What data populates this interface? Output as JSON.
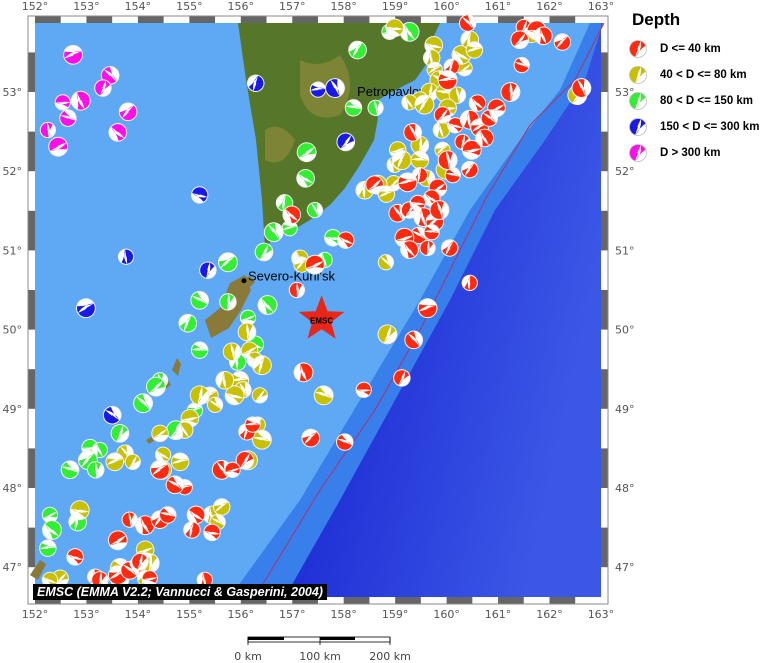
{
  "map": {
    "extent": {
      "lon_min": 152,
      "lon_max": 163,
      "lat_min": 46.62,
      "lat_max": 53.87
    },
    "lon_ticks": [
      152,
      153,
      154,
      155,
      156,
      157,
      158,
      159,
      160,
      161,
      162,
      163
    ],
    "lat_ticks": [
      47,
      48,
      49,
      50,
      51,
      52,
      53
    ],
    "degree_symbol": "°",
    "places": [
      {
        "name": "Petropavlovsk",
        "lon": 158.65,
        "lat": 53.01
      },
      {
        "name": "Severo-Kuril'sk",
        "lon": 156.12,
        "lat": 50.68
      }
    ],
    "epicenter": {
      "label": "EMSC",
      "lon": 157.57,
      "lat": 50.13,
      "color": "#e8261a"
    },
    "colors": {
      "sea_shallow": "#5fa8f4",
      "sea_mid": "#2f74ea",
      "sea_deep": "#1f2fd6",
      "trench_floor": "#3c57e6",
      "land": "#56772a",
      "trench_line": "#b0306a"
    }
  },
  "depth_classes": [
    {
      "key": "red",
      "label": "D <= 40 km",
      "color": "#ff2a10"
    },
    {
      "key": "yellow",
      "label": "40 < D <= 80 km",
      "color": "#c8c000"
    },
    {
      "key": "green",
      "label": "80 < D <= 150 km",
      "color": "#33ee33"
    },
    {
      "key": "blue",
      "label": "150 < D <= 300 km",
      "color": "#1a1ae6"
    },
    {
      "key": "magenta",
      "label": "D > 300 km",
      "color": "#ff10e8"
    }
  ],
  "legend": {
    "title": "Depth"
  },
  "events": {
    "red": [
      [
        160.41,
        53.87
      ],
      [
        161.5,
        53.82
      ],
      [
        161.75,
        53.78
      ],
      [
        161.88,
        53.71
      ],
      [
        162.25,
        53.63
      ],
      [
        161.46,
        53.34
      ],
      [
        161.24,
        53.0
      ],
      [
        160.97,
        52.8
      ],
      [
        160.6,
        52.86
      ],
      [
        160.1,
        53.32
      ],
      [
        160.02,
        53.15
      ],
      [
        159.34,
        52.49
      ],
      [
        159.92,
        52.71
      ],
      [
        160.17,
        52.58
      ],
      [
        160.45,
        52.65
      ],
      [
        160.64,
        52.55
      ],
      [
        160.83,
        52.67
      ],
      [
        160.31,
        52.37
      ],
      [
        160.49,
        52.27
      ],
      [
        160.74,
        52.42
      ],
      [
        160.45,
        52.02
      ],
      [
        160.12,
        51.95
      ],
      [
        160.02,
        52.14
      ],
      [
        159.83,
        51.79
      ],
      [
        159.71,
        51.66
      ],
      [
        159.48,
        51.95
      ],
      [
        159.24,
        51.86
      ],
      [
        159.05,
        51.47
      ],
      [
        159.28,
        51.51
      ],
      [
        159.44,
        51.6
      ],
      [
        159.55,
        51.42
      ],
      [
        159.77,
        51.36
      ],
      [
        159.46,
        51.19
      ],
      [
        159.63,
        51.03
      ],
      [
        159.18,
        51.16
      ],
      [
        159.28,
        51.01
      ],
      [
        160.06,
        51.03
      ],
      [
        159.71,
        51.23
      ],
      [
        159.86,
        51.51
      ],
      [
        158.6,
        51.83
      ],
      [
        158.04,
        51.13
      ],
      [
        160.45,
        50.59
      ],
      [
        159.63,
        50.27
      ],
      [
        159.36,
        49.87
      ],
      [
        159.13,
        49.39
      ],
      [
        158.39,
        49.24
      ],
      [
        157.22,
        49.46
      ],
      [
        157.36,
        48.63
      ],
      [
        158.02,
        48.58
      ],
      [
        157.09,
        50.5
      ],
      [
        157.44,
        50.82
      ],
      [
        156.99,
        51.45
      ],
      [
        156.12,
        48.71
      ],
      [
        156.23,
        48.8
      ],
      [
        162.62,
        53.05
      ],
      [
        161.42,
        53.66
      ],
      [
        152.78,
        47.13
      ],
      [
        153.17,
        46.88
      ],
      [
        153.61,
        46.9
      ],
      [
        153.84,
        46.96
      ],
      [
        154.04,
        47.07
      ],
      [
        154.23,
        46.86
      ],
      [
        154.14,
        47.53
      ],
      [
        154.43,
        47.6
      ],
      [
        154.58,
        47.66
      ],
      [
        153.84,
        47.6
      ],
      [
        153.61,
        47.34
      ],
      [
        155.13,
        47.66
      ],
      [
        155.05,
        47.47
      ],
      [
        154.91,
        48.01
      ],
      [
        155.63,
        48.23
      ],
      [
        156.08,
        48.35
      ],
      [
        155.44,
        47.44
      ],
      [
        155.3,
        46.84
      ],
      [
        154.43,
        48.23
      ],
      [
        154.72,
        48.04
      ],
      [
        153.26,
        46.84
      ],
      [
        155.84,
        48.23
      ]
    ],
    "yellow": [
      [
        159.75,
        53.59
      ],
      [
        159.71,
        53.43
      ],
      [
        159.77,
        53.28
      ],
      [
        159.86,
        53.15
      ],
      [
        159.67,
        53.0
      ],
      [
        159.48,
        52.9
      ],
      [
        159.28,
        52.87
      ],
      [
        159.57,
        52.84
      ],
      [
        159.96,
        52.99
      ],
      [
        160.21,
        52.96
      ],
      [
        160.35,
        53.3
      ],
      [
        160.29,
        53.47
      ],
      [
        160.45,
        53.66
      ],
      [
        160.54,
        53.53
      ],
      [
        161.65,
        53.72
      ],
      [
        162.54,
        52.96
      ],
      [
        158.99,
        53.81
      ],
      [
        159.9,
        52.52
      ],
      [
        159.92,
        52.27
      ],
      [
        159.98,
        52.02
      ],
      [
        159.48,
        52.33
      ],
      [
        159.05,
        52.27
      ],
      [
        158.99,
        52.08
      ],
      [
        159.13,
        52.14
      ],
      [
        159.48,
        52.14
      ],
      [
        159.61,
        51.91
      ],
      [
        158.97,
        51.85
      ],
      [
        158.66,
        51.83
      ],
      [
        158.41,
        51.76
      ],
      [
        158.83,
        51.71
      ],
      [
        158.82,
        50.85
      ],
      [
        158.85,
        49.94
      ],
      [
        160.02,
        52.8
      ],
      [
        157.15,
        50.9
      ],
      [
        157.18,
        50.82
      ],
      [
        157.61,
        49.17
      ],
      [
        156.12,
        49.97
      ],
      [
        156.17,
        49.74
      ],
      [
        156.27,
        49.62
      ],
      [
        156.41,
        49.55
      ],
      [
        155.98,
        49.36
      ],
      [
        156.04,
        49.24
      ],
      [
        156.37,
        49.17
      ],
      [
        155.88,
        49.17
      ],
      [
        155.69,
        49.36
      ],
      [
        155.4,
        49.17
      ],
      [
        155.5,
        49.05
      ],
      [
        155.2,
        49.17
      ],
      [
        155.01,
        48.88
      ],
      [
        154.91,
        48.73
      ],
      [
        156.33,
        48.8
      ],
      [
        156.41,
        48.61
      ],
      [
        155.83,
        49.72
      ],
      [
        154.43,
        48.69
      ],
      [
        154.49,
        48.42
      ],
      [
        154.47,
        48.23
      ],
      [
        154.82,
        48.33
      ],
      [
        153.75,
        48.44
      ],
      [
        153.9,
        48.33
      ],
      [
        152.87,
        47.72
      ],
      [
        155.44,
        47.66
      ],
      [
        155.63,
        47.76
      ],
      [
        155.55,
        47.57
      ],
      [
        154.23,
        47.05
      ],
      [
        154.14,
        47.22
      ],
      [
        154.0,
        47.03
      ],
      [
        154.14,
        46.86
      ],
      [
        153.65,
        46.99
      ],
      [
        153.65,
        46.84
      ],
      [
        152.49,
        46.86
      ],
      [
        152.29,
        46.84
      ],
      [
        156.14,
        48.35
      ],
      [
        153.55,
        48.33
      ]
    ],
    "green": [
      [
        158.89,
        53.76
      ],
      [
        159.28,
        53.76
      ],
      [
        158.27,
        53.53
      ],
      [
        158.19,
        52.8
      ],
      [
        158.62,
        52.8
      ],
      [
        157.28,
        52.24
      ],
      [
        157.26,
        51.91
      ],
      [
        156.85,
        51.6
      ],
      [
        156.95,
        51.28
      ],
      [
        156.64,
        51.23
      ],
      [
        156.45,
        50.98
      ],
      [
        157.79,
        51.16
      ],
      [
        157.63,
        50.88
      ],
      [
        155.75,
        50.85
      ],
      [
        155.2,
        50.37
      ],
      [
        155.75,
        50.35
      ],
      [
        156.14,
        50.15
      ],
      [
        156.52,
        50.31
      ],
      [
        154.97,
        50.08
      ],
      [
        155.2,
        49.74
      ],
      [
        154.43,
        49.36
      ],
      [
        154.35,
        49.28
      ],
      [
        156.27,
        49.81
      ],
      [
        155.94,
        49.59
      ],
      [
        155.11,
        48.98
      ],
      [
        154.1,
        49.07
      ],
      [
        153.65,
        48.69
      ],
      [
        153.07,
        48.51
      ],
      [
        153.26,
        48.48
      ],
      [
        153.03,
        48.35
      ],
      [
        152.68,
        48.23
      ],
      [
        153.18,
        48.23
      ],
      [
        152.29,
        47.66
      ],
      [
        152.33,
        47.47
      ],
      [
        152.83,
        47.57
      ],
      [
        152.25,
        47.24
      ],
      [
        157.44,
        51.51
      ],
      [
        154.74,
        48.73
      ]
    ],
    "blue": [
      [
        156.29,
        53.11
      ],
      [
        157.5,
        53.03
      ],
      [
        157.83,
        53.05
      ],
      [
        158.04,
        52.37
      ],
      [
        155.2,
        51.7
      ],
      [
        153.77,
        50.92
      ],
      [
        152.99,
        50.27
      ],
      [
        153.5,
        48.92
      ],
      [
        155.36,
        50.75
      ]
    ],
    "magenta": [
      [
        152.74,
        53.47
      ],
      [
        153.46,
        53.21
      ],
      [
        153.32,
        53.05
      ],
      [
        152.54,
        52.87
      ],
      [
        152.89,
        52.89
      ],
      [
        153.81,
        52.75
      ],
      [
        152.64,
        52.67
      ],
      [
        152.25,
        52.52
      ],
      [
        152.45,
        52.31
      ],
      [
        153.61,
        52.49
      ]
    ]
  },
  "credit": "EMSC (EMMA V2.2; Vannucci & Gasperini, 2004)",
  "scale_bar": {
    "labels": [
      "0 km",
      "100 km",
      "200 km"
    ]
  }
}
